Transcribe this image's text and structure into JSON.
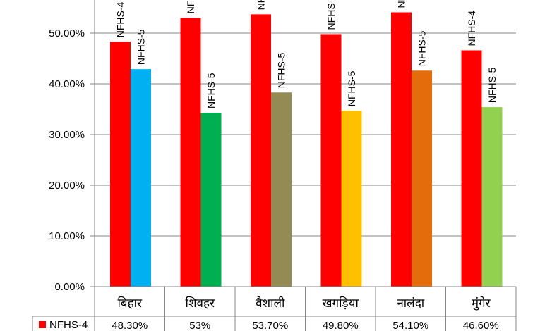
{
  "chart_data": {
    "type": "bar",
    "categories": [
      "बिहार",
      "शिवहर",
      "वैशाली",
      "खगड़िया",
      "नालंदा",
      "मुंगेर"
    ],
    "ylim": [
      0,
      60
    ],
    "y_ticks": [
      "0.00%",
      "10.00%",
      "20.00%",
      "30.00%",
      "40.00%",
      "50.00%"
    ],
    "gridlines": true,
    "series": [
      {
        "name": "NFHS-4",
        "values": [
          48.3,
          53,
          53.7,
          49.8,
          54.1,
          46.6
        ],
        "colors": [
          "#ff0000",
          "#ff0000",
          "#ff0000",
          "#ff0000",
          "#ff0000",
          "#ff0000"
        ],
        "table_values": [
          "48.30%",
          "53%",
          "53.70%",
          "49.80%",
          "54.10%",
          "46.60%"
        ]
      },
      {
        "name": "NFHS-5",
        "values": [
          42.9,
          34.3,
          38.3,
          34.7,
          42.6,
          35.4
        ],
        "colors": [
          "#00b0f0",
          "#00b050",
          "#948a54",
          "#ffc000",
          "#e46c0a",
          "#92d050"
        ]
      }
    ],
    "legend_position": "data-table-left"
  }
}
